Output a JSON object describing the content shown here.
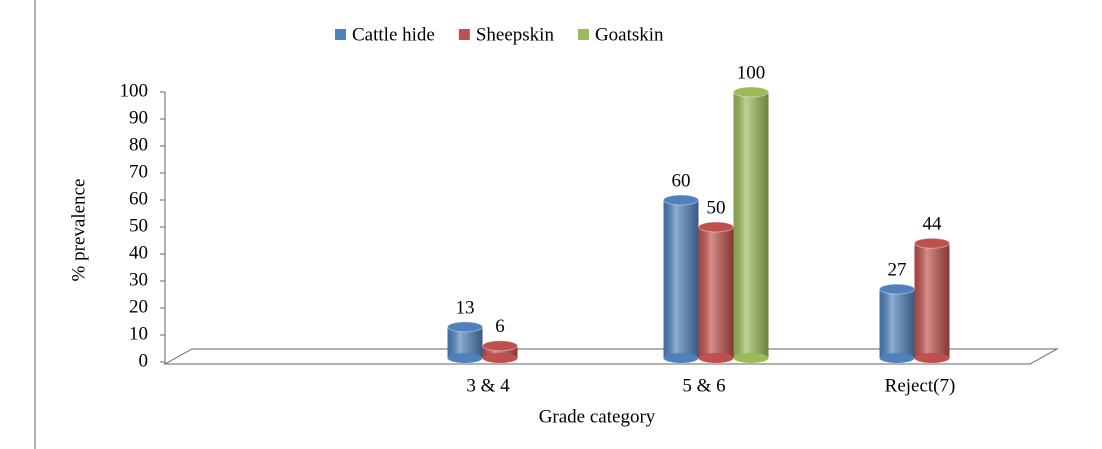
{
  "chart_data": {
    "type": "bar",
    "x_label": "Grade category",
    "y_label": "% prevalence",
    "categories": [
      null,
      "3 & 4",
      "5 & 6",
      "Reject(7)"
    ],
    "series": [
      {
        "name": "Cattle hide",
        "color": "#4f81bd",
        "values": [
          null,
          13,
          60,
          27
        ]
      },
      {
        "name": "Sheepskin",
        "color": "#c0504d",
        "values": [
          null,
          6,
          50,
          44
        ]
      },
      {
        "name": "Goatskin",
        "color": "#9bbb59",
        "values": [
          null,
          null,
          100,
          null
        ]
      }
    ],
    "ylim": [
      0,
      100
    ],
    "yticks": [
      0,
      10,
      20,
      30,
      40,
      50,
      60,
      70,
      80,
      90,
      100
    ],
    "grid": false,
    "legend": "top"
  }
}
